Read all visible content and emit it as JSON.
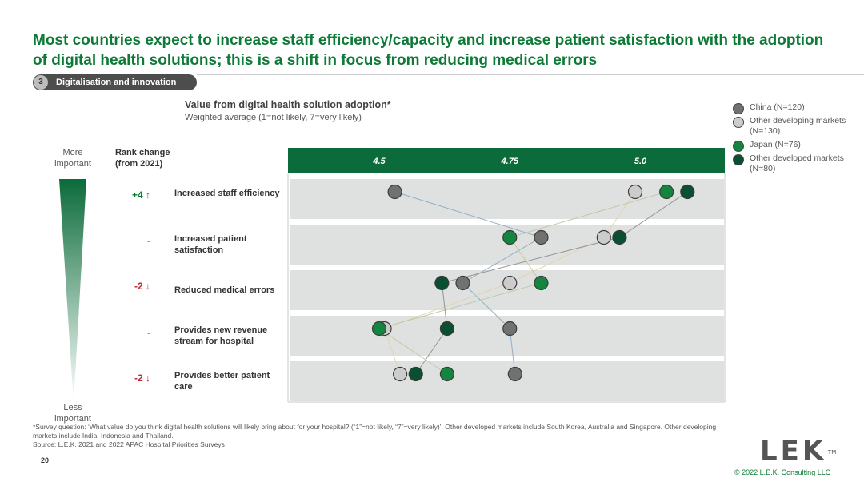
{
  "title": "Most countries expect to increase staff efficiency/capacity and increase patient satisfaction with the adoption of digital health solutions; this is a shift in focus from reducing medical errors",
  "section": {
    "number": "3",
    "label": "Digitalisation and innovation"
  },
  "importance_axis": {
    "top": "More important",
    "bottom": "Less important"
  },
  "rank_header": "Rank change (from 2021)",
  "colors": {
    "china": "#717171",
    "other_developing": "#cccccc",
    "japan": "#14853e",
    "other_developed": "#0b4f32",
    "header_bar": "#0b6b3a",
    "row_band": "#dfe1e0",
    "rank_positive": "#0e7a37",
    "rank_negative": "#c0282d"
  },
  "chart_data": {
    "type": "scatter",
    "title": "Value from digital health solution adoption*",
    "subtitle": "Weighted average (1=not likely, 7=very likely)",
    "x_ticks": [
      "4.5",
      "4.75",
      "5.0"
    ],
    "xlim": [
      4.33,
      5.16
    ],
    "categories": [
      "Increased staff efficiency",
      "Increased patient satisfaction",
      "Reduced medical errors",
      "Provides new revenue stream for hospital",
      "Provides better patient care"
    ],
    "rank_change": [
      "+4 ↑",
      "-",
      "-2 ↓",
      "-",
      "-2 ↓"
    ],
    "series": [
      {
        "name": "China (N=120)",
        "key": "china",
        "values": [
          4.53,
          4.81,
          4.66,
          4.75,
          4.76
        ]
      },
      {
        "name": "Other developing markets (N=130)",
        "key": "other_developing",
        "values": [
          4.99,
          4.93,
          4.75,
          4.51,
          4.54
        ]
      },
      {
        "name": "Japan (N=76)",
        "key": "japan",
        "values": [
          5.05,
          4.75,
          4.81,
          4.5,
          4.63
        ]
      },
      {
        "name": "Other developed markets (N=80)",
        "key": "other_developed",
        "values": [
          5.09,
          4.96,
          4.62,
          4.63,
          4.57
        ]
      }
    ]
  },
  "footnote": {
    "survey": "*Survey question: ‘What value do you think digital health solutions will likely bring about for your hospital? (“1”=not likely, “7”=very likely)’. Other developed markets include South Korea, Australia and Singapore. Other developing markets include India, Indonesia and Thailand.",
    "source": "Source: L.E.K. 2021 and 2022 APAC Hospital Priorities Surveys"
  },
  "page_number": "20",
  "logo": {
    "text": "LEK",
    "trademark": "TM"
  },
  "copyright": "© 2022 L.E.K. Consulting LLC"
}
